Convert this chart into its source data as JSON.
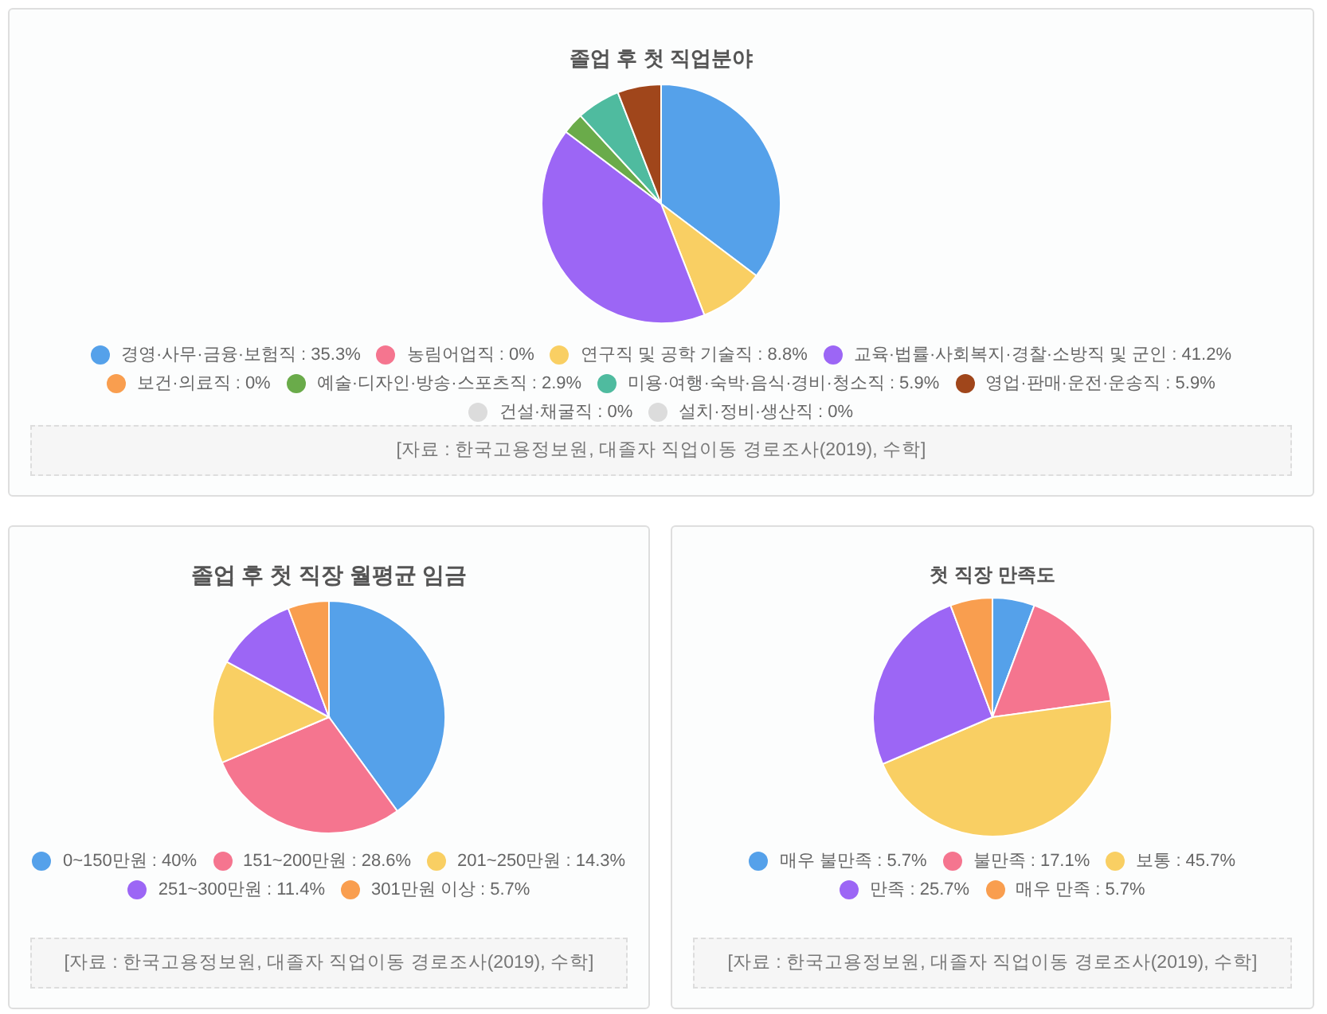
{
  "chart_data": [
    {
      "type": "pie",
      "title": "졸업 후 첫 직업분야",
      "categories": [
        "경영·사무·금융·보험직",
        "농림어업직",
        "연구직 및 공학 기술직",
        "교육·법률·사회복지·경찰·소방직 및 군인",
        "보건·의료직",
        "예술·디자인·방송·스포츠직",
        "미용·여행·숙박·음식·경비·청소직",
        "영업·판매·운전·운송직",
        "건설·채굴직",
        "설치·정비·생산직"
      ],
      "values": [
        35.3,
        0,
        8.8,
        41.2,
        0,
        2.9,
        5.9,
        5.9,
        0,
        0
      ],
      "value_labels": [
        "35.3%",
        "0%",
        "8.8%",
        "41.2%",
        "0%",
        "2.9%",
        "5.9%",
        "5.9%",
        "0%",
        "0%"
      ],
      "colors": [
        "#55a1ea",
        "#f5758f",
        "#f9cf63",
        "#9c66f5",
        "#f99e4f",
        "#6aab4a",
        "#4fbb9f",
        "#a0461b",
        "#dcdcdc",
        "#dcdcdc"
      ],
      "legend": "bottom",
      "annotations": [
        "[자료 : 한국고용정보원, 대졸자 직업이동 경로조사(2019), 수학]"
      ]
    },
    {
      "type": "pie",
      "title": "졸업 후 첫 직장 월평균 임금",
      "categories": [
        "0~150만원",
        "151~200만원",
        "201~250만원",
        "251~300만원",
        "301만원 이상"
      ],
      "values": [
        40,
        28.6,
        14.3,
        11.4,
        5.7
      ],
      "value_labels": [
        "40%",
        "28.6%",
        "14.3%",
        "11.4%",
        "5.7%"
      ],
      "colors": [
        "#55a1ea",
        "#f5758f",
        "#f9cf63",
        "#9c66f5",
        "#f99e4f"
      ],
      "legend": "bottom",
      "annotations": [
        "[자료 : 한국고용정보원, 대졸자 직업이동 경로조사(2019), 수학]"
      ]
    },
    {
      "type": "pie",
      "title": "첫 직장 만족도",
      "categories": [
        "매우 불만족",
        "불만족",
        "보통",
        "만족",
        "매우 만족"
      ],
      "values": [
        5.7,
        17.1,
        45.7,
        25.7,
        5.7
      ],
      "value_labels": [
        "5.7%",
        "17.1%",
        "45.7%",
        "25.7%",
        "5.7%"
      ],
      "colors": [
        "#55a1ea",
        "#f5758f",
        "#f9cf63",
        "#9c66f5",
        "#f99e4f"
      ],
      "legend": "bottom",
      "annotations": [
        "[자료 : 한국고용정보원, 대졸자 직업이동 경로조사(2019), 수학]"
      ]
    }
  ]
}
